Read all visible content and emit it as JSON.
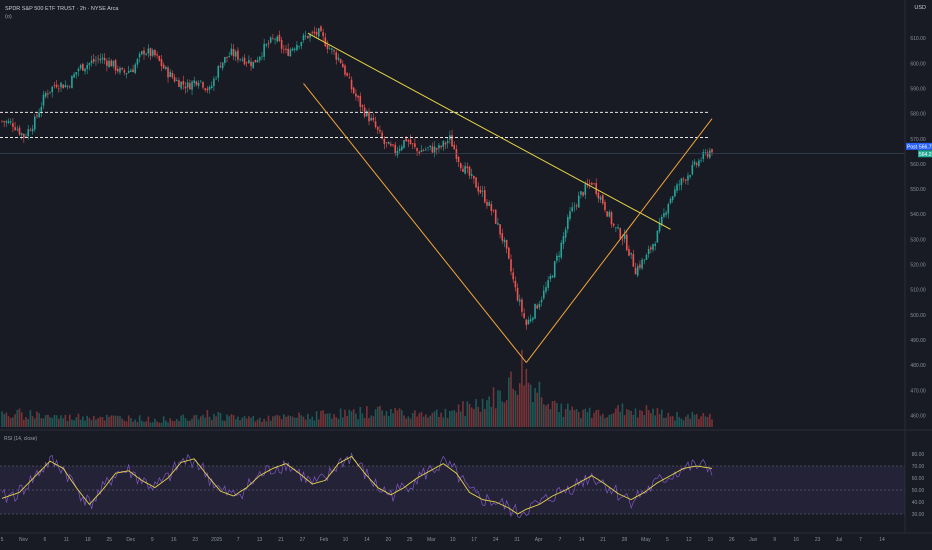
{
  "header": {
    "symbol_line": "SPDR S&P 500 ETF TRUST · 2h · NYSE Arca",
    "sub_line": "(o)",
    "currency": "USD",
    "rsi_title": "RSI (14, close)"
  },
  "tags": {
    "post_label": "Post",
    "post_price": "566.79",
    "last_price": "564.23"
  },
  "chart_data": [
    {
      "type": "candlestick",
      "title": "SPDR S&P 500 ETF TRUST · 2h · NYSE Arca",
      "ylabel": "USD",
      "ylim": [
        455,
        622
      ],
      "y_ticks": [
        460,
        470,
        480,
        490,
        500,
        510,
        520,
        530,
        540,
        550,
        560,
        570,
        580,
        590,
        600,
        610
      ],
      "x_ticks": [
        "5",
        "Nov",
        "6",
        "11",
        "18",
        "25",
        "Dec",
        "9",
        "16",
        "23",
        "2025",
        "7",
        "13",
        "21",
        "27",
        "Feb",
        "10",
        "14",
        "20",
        "25",
        "Mar",
        "10",
        "17",
        "24",
        "31",
        "Apr",
        "7",
        "14",
        "21",
        "28",
        "May",
        "5",
        "12",
        "19",
        "26",
        "Jun",
        "9",
        "16",
        "23",
        "Jul",
        "7",
        "14"
      ],
      "grid": false,
      "series": [
        {
          "values": [
            [
              0,
              577
            ],
            [
              5,
              576
            ],
            [
              10,
              571
            ],
            [
              15,
              577
            ],
            [
              20,
              588
            ],
            [
              25,
              592
            ],
            [
              30,
              591
            ],
            [
              35,
              598
            ],
            [
              40,
              600
            ],
            [
              45,
              602
            ],
            [
              50,
              600
            ],
            [
              55,
              596
            ],
            [
              60,
              598
            ],
            [
              65,
              605
            ],
            [
              70,
              603
            ],
            [
              75,
              597
            ],
            [
              80,
              593
            ],
            [
              85,
              591
            ],
            [
              90,
              594
            ],
            [
              95,
              589
            ],
            [
              100,
              600
            ],
            [
              105,
              604
            ],
            [
              110,
              602
            ],
            [
              115,
              600
            ],
            [
              120,
              606
            ],
            [
              125,
              610
            ],
            [
              130,
              604
            ],
            [
              135,
              608
            ],
            [
              140,
              611
            ],
            [
              145,
              612
            ],
            [
              150,
              606
            ],
            [
              155,
              601
            ],
            [
              160,
              590
            ],
            [
              165,
              582
            ],
            [
              170,
              576
            ],
            [
              175,
              568
            ],
            [
              180,
              565
            ],
            [
              185,
              570
            ],
            [
              190,
              565
            ],
            [
              195,
              566
            ],
            [
              200,
              566
            ],
            [
              205,
              570
            ],
            [
              210,
              560
            ],
            [
              215,
              554
            ],
            [
              220,
              548
            ],
            [
              225,
              540
            ],
            [
              230,
              528
            ],
            [
              235,
              510
            ],
            [
              240,
              496
            ],
            [
              245,
              504
            ],
            [
              250,
              512
            ],
            [
              255,
              525
            ],
            [
              260,
              540
            ],
            [
              265,
              548
            ],
            [
              270,
              553
            ],
            [
              275,
              545
            ],
            [
              280,
              535
            ],
            [
              285,
              530
            ],
            [
              290,
              518
            ],
            [
              295,
              523
            ],
            [
              300,
              532
            ],
            [
              305,
              545
            ],
            [
              310,
              552
            ],
            [
              315,
              557
            ],
            [
              320,
              562
            ],
            [
              325,
              566
            ]
          ]
        },
        {
          "name": "Volume",
          "values": [
            [
              0,
              5
            ],
            [
              10,
              6
            ],
            [
              20,
              5
            ],
            [
              30,
              4
            ],
            [
              40,
              5
            ],
            [
              50,
              4
            ],
            [
              60,
              4
            ],
            [
              70,
              3
            ],
            [
              80,
              4
            ],
            [
              90,
              6
            ],
            [
              100,
              5
            ],
            [
              110,
              4
            ],
            [
              120,
              4
            ],
            [
              130,
              4
            ],
            [
              140,
              5
            ],
            [
              150,
              6
            ],
            [
              160,
              6
            ],
            [
              170,
              7
            ],
            [
              180,
              7
            ],
            [
              190,
              6
            ],
            [
              200,
              6
            ],
            [
              210,
              8
            ],
            [
              220,
              11
            ],
            [
              230,
              14
            ],
            [
              232,
              20
            ],
            [
              234,
              16
            ],
            [
              238,
              26
            ],
            [
              242,
              18
            ],
            [
              246,
              16
            ],
            [
              250,
              13
            ],
            [
              255,
              9
            ],
            [
              260,
              7
            ],
            [
              270,
              6
            ],
            [
              280,
              7
            ],
            [
              290,
              8
            ],
            [
              300,
              6
            ],
            [
              310,
              5
            ],
            [
              320,
              5
            ],
            [
              325,
              4
            ]
          ]
        },
        {
          "name": "RSI (14, close)",
          "values": [
            [
              0,
              43
            ],
            [
              8,
              48
            ],
            [
              16,
              63
            ],
            [
              22,
              74
            ],
            [
              28,
              68
            ],
            [
              34,
              52
            ],
            [
              40,
              38
            ],
            [
              46,
              50
            ],
            [
              52,
              64
            ],
            [
              58,
              66
            ],
            [
              64,
              58
            ],
            [
              70,
              52
            ],
            [
              76,
              60
            ],
            [
              82,
              73
            ],
            [
              88,
              76
            ],
            [
              94,
              62
            ],
            [
              100,
              49
            ],
            [
              106,
              45
            ],
            [
              112,
              52
            ],
            [
              118,
              62
            ],
            [
              124,
              68
            ],
            [
              130,
              72
            ],
            [
              136,
              64
            ],
            [
              142,
              55
            ],
            [
              148,
              58
            ],
            [
              154,
              72
            ],
            [
              160,
              78
            ],
            [
              166,
              64
            ],
            [
              172,
              52
            ],
            [
              178,
              46
            ],
            [
              184,
              52
            ],
            [
              190,
              60
            ],
            [
              196,
              66
            ],
            [
              202,
              72
            ],
            [
              208,
              64
            ],
            [
              214,
              48
            ],
            [
              220,
              42
            ],
            [
              226,
              40
            ],
            [
              232,
              35
            ],
            [
              236,
              30
            ],
            [
              240,
              34
            ],
            [
              246,
              38
            ],
            [
              252,
              45
            ],
            [
              258,
              50
            ],
            [
              264,
              56
            ],
            [
              270,
              62
            ],
            [
              276,
              55
            ],
            [
              282,
              47
            ],
            [
              288,
              42
            ],
            [
              294,
              48
            ],
            [
              300,
              56
            ],
            [
              306,
              62
            ],
            [
              312,
              68
            ],
            [
              318,
              70
            ],
            [
              325,
              68
            ]
          ]
        }
      ],
      "rsi_axis": {
        "ylim": [
          25,
          85
        ],
        "ticks": [
          30,
          40,
          50,
          60,
          70,
          80
        ],
        "band": [
          30,
          70
        ]
      },
      "annotations": {
        "resistance_levels": [
          580.5,
          570.5
        ],
        "descending_trendline": [
          [
            140,
            612
          ],
          [
            306,
            534
          ]
        ],
        "wedge_left_line": [
          [
            138,
            592
          ],
          [
            240,
            481
          ]
        ],
        "wedge_right_line": [
          [
            240,
            481
          ],
          [
            325,
            578
          ]
        ],
        "price_line": 564.23
      }
    }
  ]
}
